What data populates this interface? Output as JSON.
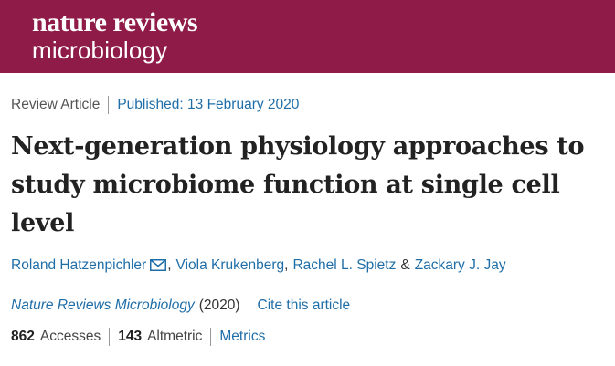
{
  "journal_banner": {
    "logo_line1": "nature reviews",
    "logo_line2": "microbiology",
    "background_color": "#8f1c48"
  },
  "article": {
    "type": "Review Article",
    "published": "Published: 13 February 2020",
    "title": "Next-generation physiology approaches to study microbiome function at single cell level",
    "authors": [
      {
        "name": "Roland Hatzenpichler",
        "has_mail_icon": true
      },
      {
        "name": "Viola Krukenberg"
      },
      {
        "name": "Rachel L. Spietz"
      },
      {
        "name": "Zackary J. Jay"
      }
    ],
    "journal_name": "Nature Reviews Microbiology",
    "year": "(2020)",
    "cite_link": "Cite this article",
    "metrics": {
      "accesses_count": "862",
      "accesses_label": "Accesses",
      "altmetric_count": "143",
      "altmetric_label": "Altmetric",
      "metrics_link": "Metrics"
    }
  },
  "colors": {
    "link": "#1f6ea8",
    "text": "#222222"
  }
}
